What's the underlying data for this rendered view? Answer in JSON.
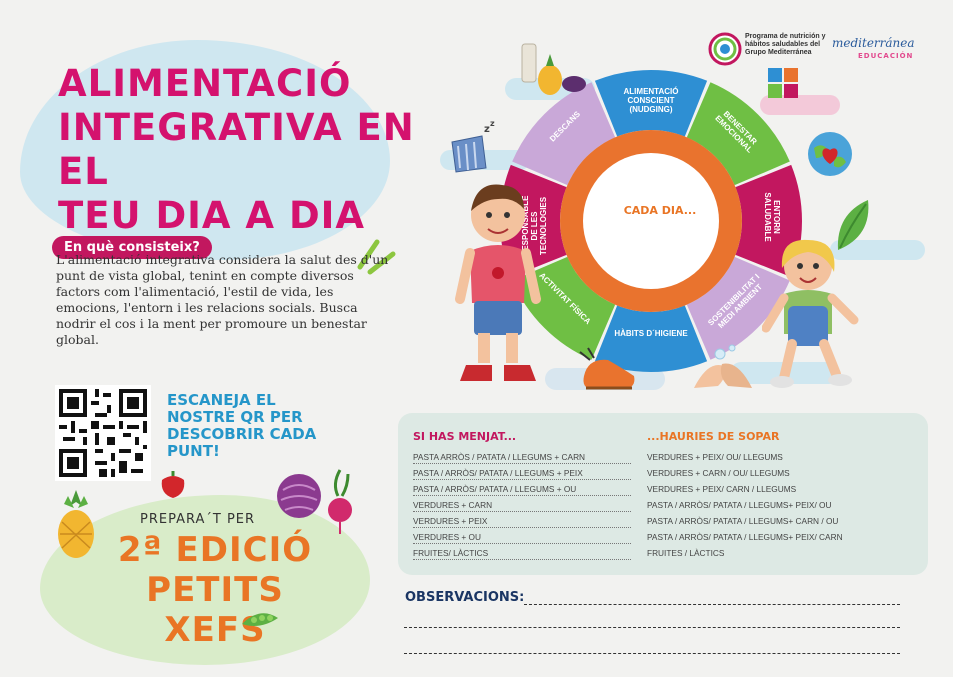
{
  "header": {
    "title_lines": [
      "ALIMENTACIÓ",
      "INTEGRATIVA EN EL",
      "TEU DIA A DIA"
    ],
    "logos": {
      "program_text": "Programa de nutrición y hábitos saludables del Grupo Mediterránea",
      "brand": "mediterránea",
      "brand_sub": "EDUCACIÓN"
    }
  },
  "intro": {
    "question": "En què consisteix?",
    "text": "L'alimentació integrativa considera la salut des d'un punt de vista global, tenint en compte diversos factors com l'alimentació, l'estil de vida, les emocions, l'entorn i les relacions socials. Busca nodrir el cos i la ment per promoure un benestar global."
  },
  "qr": {
    "call_to_action": "ESCANEJA EL NOSTRE QR PER DESCOBRIR CADA PUNT!"
  },
  "edition": {
    "prep": "PREPARA´T PER",
    "line1": "2ª EDICIÓ",
    "line2": "PETITS XEFS"
  },
  "wheel": {
    "center": "CADA DIA...",
    "segments": [
      {
        "label": "ALIMENTACIÓ CONSCIENT (NUDGING)",
        "color": "#2e8fd3"
      },
      {
        "label": "BENESTAR EMOCIONAL",
        "color": "#6fbf44"
      },
      {
        "label": "ENTORN SALUDABLE",
        "color": "#c2175f"
      },
      {
        "label": "SOSTENIBILITAT I MEDI AMBIENT",
        "color": "#c9a8d8"
      },
      {
        "label": "HÀBITS D´HIGIENE",
        "color": "#2e8fd3"
      },
      {
        "label": "ACTIVITAT FÍSICA",
        "color": "#6fbf44"
      },
      {
        "label": "ÚS RESPONSABLE DE LES TECNOLOGIES",
        "color": "#c2175f"
      },
      {
        "label": "DESCANS",
        "color": "#c9a8d8"
      }
    ]
  },
  "menu": {
    "left_header": "SI HAS MENJAT...",
    "right_header": "...HAURIES DE SOPAR",
    "left_items": [
      "PASTA ARRÒS / PATATA / LLEGUMS + CARN",
      "PASTA / ARRÒS/ PATATA / LLEGUMS + PEIX",
      "PASTA / ARRÒS/ PATATA / LLEGUMS + OU",
      "VERDURES + CARN",
      "VERDURES + PEIX",
      "VERDURES + OU",
      "FRUITES/ LÀCTICS"
    ],
    "right_items": [
      "VERDURES + PEIX/ OU/ LLEGUMS",
      "VERDURES + CARN / OU/ LLEGUMS",
      "VERDURES + PEIX/ CARN / LLEGUMS",
      "PASTA / ARRÒS/ PATATA / LLEGUMS+ PEIX/ OU",
      "PASTA / ARRÒS/ PATATA / LLEGUMS+ CARN / OU",
      "PASTA / ARRÒS/ PATATA / LLEGUMS+ PEIX/ CARN",
      "FRUITES / LÀCTICS"
    ]
  },
  "observations": {
    "label": "OBSERVACIONS:"
  }
}
